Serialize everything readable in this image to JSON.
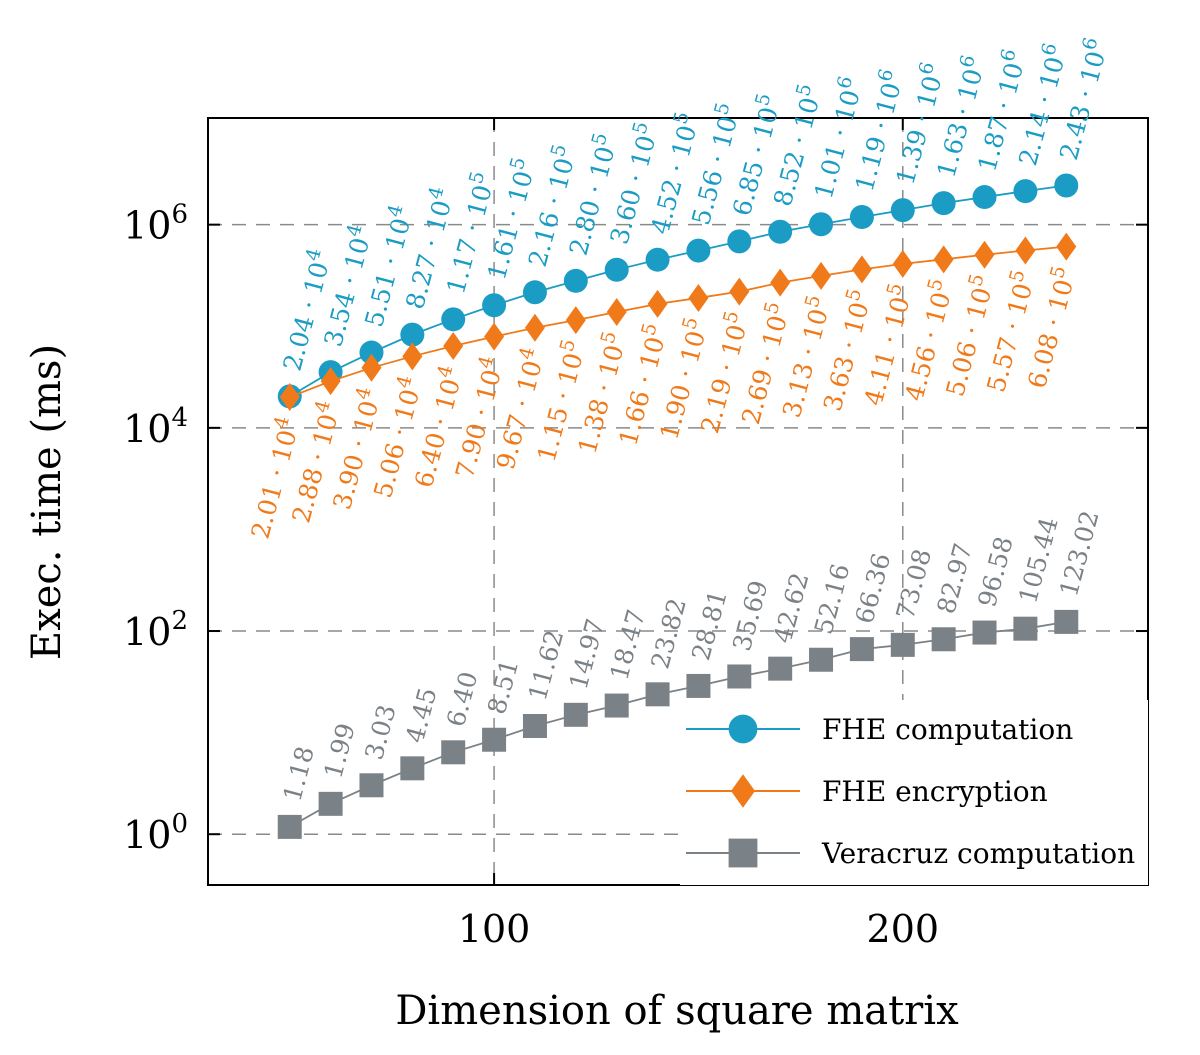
{
  "chart_data": {
    "type": "line",
    "xlabel": "Dimension of square matrix",
    "ylabel": "Exec. time (ms)",
    "yscale": "log",
    "xlim": [
      30,
      260
    ],
    "ylim_log10": [
      -0.5,
      7.05
    ],
    "xticks": [
      100,
      200
    ],
    "yticks": [
      {
        "exp": 0,
        "base": "10",
        "sup": "0"
      },
      {
        "exp": 2,
        "base": "10",
        "sup": "2"
      },
      {
        "exp": 4,
        "base": "10",
        "sup": "4"
      },
      {
        "exp": 6,
        "base": "10",
        "sup": "6"
      }
    ],
    "grid": true,
    "legend_position": "bottom-right",
    "x": [
      50,
      60,
      70,
      80,
      90,
      100,
      110,
      120,
      130,
      140,
      150,
      160,
      170,
      180,
      190,
      200,
      210,
      220,
      230,
      240
    ],
    "series": [
      {
        "name": "FHE computation",
        "marker": "circle",
        "color": "#1b9cc4",
        "label_side": "above",
        "values": [
          20400,
          35400,
          55100,
          82700,
          117000,
          161000,
          216000,
          280000,
          360000,
          452000,
          556000,
          685000,
          852000,
          1010000,
          1190000,
          1390000,
          1630000,
          1870000,
          2140000,
          2430000
        ],
        "labels": [
          {
            "m": "2.04 · 10",
            "e": "4"
          },
          {
            "m": "3.54 · 10",
            "e": "4"
          },
          {
            "m": "5.51 · 10",
            "e": "4"
          },
          {
            "m": "8.27 · 10",
            "e": "4"
          },
          {
            "m": "1.17 · 10",
            "e": "5"
          },
          {
            "m": "1.61 · 10",
            "e": "5"
          },
          {
            "m": "2.16 · 10",
            "e": "5"
          },
          {
            "m": "2.80 · 10",
            "e": "5"
          },
          {
            "m": "3.60 · 10",
            "e": "5"
          },
          {
            "m": "4.52 · 10",
            "e": "5"
          },
          {
            "m": "5.56 · 10",
            "e": "5"
          },
          {
            "m": "6.85 · 10",
            "e": "5"
          },
          {
            "m": "8.52 · 10",
            "e": "5"
          },
          {
            "m": "1.01 · 10",
            "e": "6"
          },
          {
            "m": "1.19 · 10",
            "e": "6"
          },
          {
            "m": "1.39 · 10",
            "e": "6"
          },
          {
            "m": "1.63 · 10",
            "e": "6"
          },
          {
            "m": "1.87 · 10",
            "e": "6"
          },
          {
            "m": "2.14 · 10",
            "e": "6"
          },
          {
            "m": "2.43 · 10",
            "e": "6"
          }
        ]
      },
      {
        "name": "FHE encryption",
        "marker": "diamond",
        "color": "#f07a1a",
        "label_side": "below",
        "values": [
          20100,
          28800,
          39000,
          50600,
          64000,
          79000,
          96700,
          115000,
          138000,
          166000,
          190000,
          219000,
          269000,
          313000,
          363000,
          411000,
          456000,
          506000,
          557000,
          608000
        ],
        "labels": [
          {
            "m": "2.01 · 10",
            "e": "4"
          },
          {
            "m": "2.88 · 10",
            "e": "4"
          },
          {
            "m": "3.90 · 10",
            "e": "4"
          },
          {
            "m": "5.06 · 10",
            "e": "4"
          },
          {
            "m": "6.40 · 10",
            "e": "4"
          },
          {
            "m": "7.90 · 10",
            "e": "4"
          },
          {
            "m": "9.67 · 10",
            "e": "4"
          },
          {
            "m": "1.15 · 10",
            "e": "5"
          },
          {
            "m": "1.38 · 10",
            "e": "5"
          },
          {
            "m": "1.66 · 10",
            "e": "5"
          },
          {
            "m": "1.90 · 10",
            "e": "5"
          },
          {
            "m": "2.19 · 10",
            "e": "5"
          },
          {
            "m": "2.69 · 10",
            "e": "5"
          },
          {
            "m": "3.13 · 10",
            "e": "5"
          },
          {
            "m": "3.63 · 10",
            "e": "5"
          },
          {
            "m": "4.11 · 10",
            "e": "5"
          },
          {
            "m": "4.56 · 10",
            "e": "5"
          },
          {
            "m": "5.06 · 10",
            "e": "5"
          },
          {
            "m": "5.57 · 10",
            "e": "5"
          },
          {
            "m": "6.08 · 10",
            "e": "5"
          }
        ]
      },
      {
        "name": "Veracruz computation",
        "marker": "square",
        "color": "#7b8287",
        "label_side": "above",
        "values": [
          1.18,
          1.99,
          3.03,
          4.45,
          6.4,
          8.51,
          11.62,
          14.97,
          18.47,
          23.82,
          28.81,
          35.69,
          42.62,
          52.16,
          66.36,
          73.08,
          82.97,
          96.58,
          105.44,
          123.02
        ],
        "labels": [
          {
            "m": "1.18",
            "e": ""
          },
          {
            "m": "1.99",
            "e": ""
          },
          {
            "m": "3.03",
            "e": ""
          },
          {
            "m": "4.45",
            "e": ""
          },
          {
            "m": "6.40",
            "e": ""
          },
          {
            "m": "8.51",
            "e": ""
          },
          {
            "m": "11.62",
            "e": ""
          },
          {
            "m": "14.97",
            "e": ""
          },
          {
            "m": "18.47",
            "e": ""
          },
          {
            "m": "23.82",
            "e": ""
          },
          {
            "m": "28.81",
            "e": ""
          },
          {
            "m": "35.69",
            "e": ""
          },
          {
            "m": "42.62",
            "e": ""
          },
          {
            "m": "52.16",
            "e": ""
          },
          {
            "m": "66.36",
            "e": ""
          },
          {
            "m": "73.08",
            "e": ""
          },
          {
            "m": "82.97",
            "e": ""
          },
          {
            "m": "96.58",
            "e": ""
          },
          {
            "m": "105.44",
            "e": ""
          },
          {
            "m": "123.02",
            "e": ""
          }
        ]
      }
    ]
  }
}
